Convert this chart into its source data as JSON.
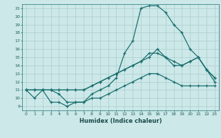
{
  "xlabel": "Humidex (Indice chaleur)",
  "bg_color": "#cce8e8",
  "grid_color": "#aacccc",
  "line_color": "#1a6e6e",
  "xlim": [
    -0.5,
    23.5
  ],
  "ylim": [
    8.5,
    21.5
  ],
  "xticks": [
    0,
    1,
    2,
    3,
    4,
    5,
    6,
    7,
    8,
    9,
    10,
    11,
    12,
    13,
    14,
    15,
    16,
    17,
    18,
    19,
    20,
    21,
    22,
    23
  ],
  "yticks": [
    9,
    10,
    11,
    12,
    13,
    14,
    15,
    16,
    17,
    18,
    19,
    20,
    21
  ],
  "line1_x": [
    0,
    1,
    2,
    3,
    4,
    5,
    6,
    7,
    8,
    9,
    10,
    11,
    12,
    13,
    14,
    15,
    16,
    17,
    18,
    19,
    20,
    21,
    22,
    23
  ],
  "line1_y": [
    11,
    10,
    11,
    9.5,
    9.5,
    9,
    9.5,
    9.5,
    10,
    10,
    10.5,
    11,
    11.5,
    12,
    12.5,
    13,
    13,
    12.5,
    12,
    11.5,
    11.5,
    11.5,
    11.5,
    11.5
  ],
  "line2_x": [
    0,
    1,
    2,
    3,
    4,
    5,
    6,
    7,
    8,
    9,
    10,
    11,
    12,
    13,
    14,
    15,
    16,
    17,
    18,
    19,
    20,
    21,
    22,
    23
  ],
  "line2_y": [
    11,
    11,
    11,
    11,
    10.5,
    9.5,
    9.5,
    9.5,
    10.5,
    11,
    11.5,
    12.5,
    15.5,
    17,
    21,
    21.3,
    21.3,
    20.5,
    19,
    18,
    16,
    15,
    13.5,
    12
  ],
  "line3_x": [
    0,
    1,
    2,
    3,
    4,
    5,
    6,
    7,
    8,
    9,
    10,
    11,
    12,
    13,
    14,
    15,
    16,
    17,
    18,
    19,
    20,
    21,
    22,
    23
  ],
  "line3_y": [
    11,
    11,
    11,
    11,
    11,
    11,
    11,
    11,
    11.5,
    12,
    12.5,
    13,
    13.5,
    14,
    14.5,
    15.5,
    15.5,
    15,
    14.5,
    14,
    14.5,
    15,
    13.5,
    12.5
  ],
  "line4_x": [
    0,
    1,
    2,
    3,
    4,
    5,
    6,
    7,
    8,
    9,
    10,
    11,
    12,
    13,
    14,
    15,
    16,
    17,
    18,
    19,
    20,
    21,
    22,
    23
  ],
  "line4_y": [
    11,
    11,
    11,
    11,
    11,
    11,
    11,
    11,
    11.5,
    12,
    12.5,
    13,
    13.5,
    14,
    14.5,
    15,
    16,
    15,
    14,
    14,
    14.5,
    15,
    13.5,
    12.5
  ]
}
